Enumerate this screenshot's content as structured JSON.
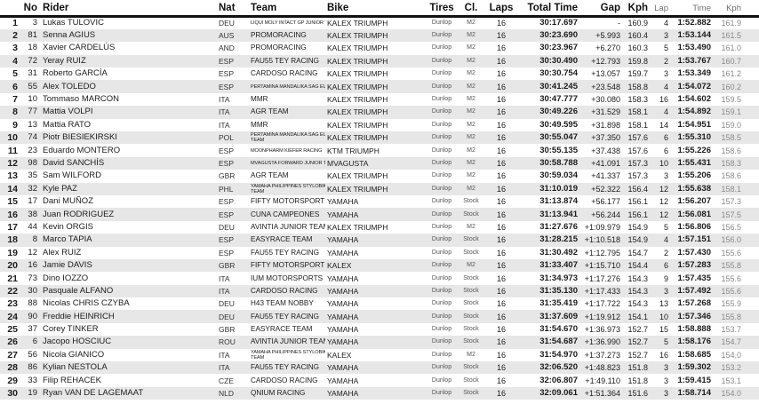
{
  "colors": {
    "rule": "#111111",
    "alt_row": "#e7e7e7",
    "body_text": "#1c1c1c",
    "muted_text": "#8a8a8a",
    "subheader_text": "#6e6e6e",
    "tire_class_text": "#555555"
  },
  "table": {
    "columns": [
      "No",
      "Rider",
      "Nat",
      "Team",
      "Bike",
      "Tires",
      "Cl.",
      "Laps",
      "Total Time",
      "Gap",
      "Kph",
      "Lap",
      "Time",
      "Kph"
    ],
    "rows": [
      {
        "pos": "1",
        "no": "3",
        "rider": "Lukas TULOVIC",
        "nat": "DEU",
        "team": "LIQUI MOLY INTACT GP JUNIOR TEAM",
        "team_small": true,
        "bike": "KALEX TRIUMPH",
        "tires": "Dunlop",
        "cl": "M2",
        "laps": "16",
        "total": "30:17.697",
        "gap": "-",
        "kph": "160.9",
        "blap": "4",
        "btime": "1:52.882",
        "bkph": "161.9"
      },
      {
        "pos": "2",
        "no": "81",
        "rider": "Senna AGIUS",
        "nat": "AUS",
        "team": "PROMORACING",
        "bike": "KALEX TRIUMPH",
        "tires": "Dunlop",
        "cl": "M2",
        "laps": "16",
        "total": "30:23.690",
        "gap": "+5.993",
        "kph": "160.4",
        "blap": "3",
        "btime": "1:53.144",
        "bkph": "161.5"
      },
      {
        "pos": "3",
        "no": "18",
        "rider": "Xavier CARDELÚS",
        "nat": "AND",
        "team": "PROMORACING",
        "bike": "KALEX TRIUMPH",
        "tires": "Dunlop",
        "cl": "M2",
        "laps": "16",
        "total": "30:23.967",
        "gap": "+6.270",
        "kph": "160.3",
        "blap": "5",
        "btime": "1:53.490",
        "bkph": "161.0"
      },
      {
        "pos": "4",
        "no": "72",
        "rider": "Yeray RUIZ",
        "nat": "ESP",
        "team": "FAU55 TEY RACING",
        "bike": "KALEX TRIUMPH",
        "tires": "Dunlop",
        "cl": "M2",
        "laps": "16",
        "total": "30:30.490",
        "gap": "+12.793",
        "kph": "159.8",
        "blap": "2",
        "btime": "1:53.767",
        "bkph": "160.7"
      },
      {
        "pos": "5",
        "no": "31",
        "rider": "Roberto GARCÍA",
        "nat": "ESP",
        "team": "CARDOSO RACING",
        "bike": "KALEX TRIUMPH",
        "tires": "Dunlop",
        "cl": "M2",
        "laps": "16",
        "total": "30:30.754",
        "gap": "+13.057",
        "kph": "159.7",
        "blap": "3",
        "btime": "1:53.349",
        "bkph": "161.2"
      },
      {
        "pos": "6",
        "no": "55",
        "rider": "Alex TOLEDO",
        "nat": "ESP",
        "team": "PERTAMINA MANDALIKA SAG EUVIC",
        "team_small": true,
        "bike": "KALEX TRIUMPH",
        "tires": "Dunlop",
        "cl": "M2",
        "laps": "16",
        "total": "30:41.245",
        "gap": "+23.548",
        "kph": "158.8",
        "blap": "4",
        "btime": "1:54.072",
        "bkph": "160.2"
      },
      {
        "pos": "7",
        "no": "10",
        "rider": "Tommaso MARCON",
        "nat": "ITA",
        "team": "MMR",
        "bike": "KALEX TRIUMPH",
        "tires": "Dunlop",
        "cl": "M2",
        "laps": "16",
        "total": "30:47.777",
        "gap": "+30.080",
        "kph": "158.3",
        "blap": "16",
        "btime": "1:54.602",
        "bkph": "159.5"
      },
      {
        "pos": "8",
        "no": "77",
        "rider": "Mattia VOLPI",
        "nat": "ITA",
        "team": "AGR TEAM",
        "bike": "KALEX TRIUMPH",
        "tires": "Dunlop",
        "cl": "M2",
        "laps": "16",
        "total": "30:49.226",
        "gap": "+31.529",
        "kph": "158.1",
        "blap": "4",
        "btime": "1:54.892",
        "bkph": "159.1"
      },
      {
        "pos": "9",
        "no": "13",
        "rider": "Mattia RATO",
        "nat": "ITA",
        "team": "MMR",
        "bike": "KALEX TRIUMPH",
        "tires": "Dunlop",
        "cl": "M2",
        "laps": "16",
        "total": "30:49.595",
        "gap": "+31.898",
        "kph": "158.1",
        "blap": "14",
        "btime": "1:54.951",
        "bkph": "159.0"
      },
      {
        "pos": "10",
        "no": "74",
        "rider": "Piotr BIESIEKIRSKI",
        "nat": "POL",
        "team": "PERTAMINA MANDALIKA SAG EUVIC RACING",
        "team2": "TEAM",
        "team_small": true,
        "bike": "KALEX TRIUMPH",
        "tires": "Dunlop",
        "cl": "M2",
        "laps": "16",
        "total": "30:55.047",
        "gap": "+37.350",
        "kph": "157.6",
        "blap": "6",
        "btime": "1:55.310",
        "bkph": "158.5"
      },
      {
        "pos": "11",
        "no": "23",
        "rider": "Eduardo MONTERO",
        "nat": "ESP",
        "team": "MOONPHARM KIEFER RACING",
        "team_small": true,
        "bike": "KTM TRIUMPH",
        "tires": "Dunlop",
        "cl": "M2",
        "laps": "16",
        "total": "30:55.135",
        "gap": "+37.438",
        "kph": "157.6",
        "blap": "6",
        "btime": "1:55.226",
        "bkph": "158.6"
      },
      {
        "pos": "12",
        "no": "98",
        "rider": "David SANCHÍS",
        "nat": "ESP",
        "team": "MVAGUSTA FORWARD JUNIOR TEAM",
        "team_small": true,
        "bike": "MVAGUSTA",
        "tires": "Dunlop",
        "cl": "M2",
        "laps": "16",
        "total": "30:58.788",
        "gap": "+41.091",
        "kph": "157.3",
        "blap": "10",
        "btime": "1:55.431",
        "bkph": "158.3"
      },
      {
        "pos": "13",
        "no": "35",
        "rider": "Sam WILFORD",
        "nat": "GBR",
        "team": "AGR TEAM",
        "bike": "KALEX TRIUMPH",
        "tires": "Dunlop",
        "cl": "M2",
        "laps": "16",
        "total": "30:59.034",
        "gap": "+41.337",
        "kph": "157.3",
        "blap": "3",
        "btime": "1:55.206",
        "bkph": "158.6"
      },
      {
        "pos": "14",
        "no": "32",
        "rider": "Kyle PAZ",
        "nat": "PHL",
        "team": "YAMAHA PHILIPPINES STYLOBIKE RACING",
        "team2": "TEAM",
        "team_small": true,
        "bike": "KALEX TRIUMPH",
        "tires": "Dunlop",
        "cl": "M2",
        "laps": "16",
        "total": "31:10.019",
        "gap": "+52.322",
        "kph": "156.4",
        "blap": "12",
        "btime": "1:55.638",
        "bkph": "158.1"
      },
      {
        "pos": "15",
        "no": "17",
        "rider": "Dani MUÑOZ",
        "nat": "ESP",
        "team": "FIFTY MOTORSPORT",
        "bike": "YAMAHA",
        "tires": "Dunlop",
        "cl": "Stock",
        "laps": "16",
        "total": "31:13.874",
        "gap": "+56.177",
        "kph": "156.1",
        "blap": "12",
        "btime": "1:56.207",
        "bkph": "157.3"
      },
      {
        "pos": "16",
        "no": "38",
        "rider": "Juan RODRIGUEZ",
        "nat": "ESP",
        "team": "CUNA CAMPEONES",
        "bike": "YAMAHA",
        "tires": "Dunlop",
        "cl": "Stock",
        "laps": "16",
        "total": "31:13.941",
        "gap": "+56.244",
        "kph": "156.1",
        "blap": "12",
        "btime": "1:56.081",
        "bkph": "157.5"
      },
      {
        "pos": "17",
        "no": "44",
        "rider": "Kevin ORGIS",
        "nat": "DEU",
        "team": "AVINTIA JUNIOR TEAM",
        "bike": "KALEX TRIUMPH",
        "tires": "Dunlop",
        "cl": "M2",
        "laps": "16",
        "total": "31:27.676",
        "gap": "+1:09.979",
        "kph": "154.9",
        "blap": "5",
        "btime": "1:56.806",
        "bkph": "156.5"
      },
      {
        "pos": "18",
        "no": "8",
        "rider": "Marco TAPIA",
        "nat": "ESP",
        "team": "EASYRACE TEAM",
        "bike": "YAMAHA",
        "tires": "Dunlop",
        "cl": "Stock",
        "laps": "16",
        "total": "31:28.215",
        "gap": "+1:10.518",
        "kph": "154.9",
        "blap": "4",
        "btime": "1:57.151",
        "bkph": "156.0"
      },
      {
        "pos": "19",
        "no": "12",
        "rider": "Alex RUIZ",
        "nat": "ESP",
        "team": "FAU55 TEY RACING",
        "bike": "YAMAHA",
        "tires": "Dunlop",
        "cl": "Stock",
        "laps": "16",
        "total": "31:30.492",
        "gap": "+1:12.795",
        "kph": "154.7",
        "blap": "2",
        "btime": "1:57.430",
        "bkph": "155.6"
      },
      {
        "pos": "20",
        "no": "16",
        "rider": "Jamie DAVIS",
        "nat": "GBR",
        "team": "FIFTY MOTORSPORT",
        "bike": "KALEX",
        "tires": "Dunlop",
        "cl": "M2",
        "laps": "16",
        "total": "31:33.407",
        "gap": "+1:15.710",
        "kph": "154.4",
        "blap": "6",
        "btime": "1:57.283",
        "bkph": "155.8"
      },
      {
        "pos": "21",
        "no": "73",
        "rider": "Dino IOZZO",
        "nat": "ITA",
        "team": "IUM MOTORSPORTS",
        "bike": "YAMAHA",
        "tires": "Dunlop",
        "cl": "Stock",
        "laps": "16",
        "total": "31:34.973",
        "gap": "+1:17.276",
        "kph": "154.3",
        "blap": "9",
        "btime": "1:57.435",
        "bkph": "155.6"
      },
      {
        "pos": "22",
        "no": "30",
        "rider": "Pasquale ALFANO",
        "nat": "ITA",
        "team": "CARDOSO RACING",
        "bike": "YAMAHA",
        "tires": "Dunlop",
        "cl": "Stock",
        "laps": "16",
        "total": "31:35.130",
        "gap": "+1:17.433",
        "kph": "154.3",
        "blap": "3",
        "btime": "1:57.492",
        "bkph": "155.6"
      },
      {
        "pos": "23",
        "no": "88",
        "rider": "Nicolas CHRIS CZYBA",
        "nat": "DEU",
        "team": "H43 TEAM NOBBY",
        "bike": "YAMAHA",
        "tires": "Dunlop",
        "cl": "Stock",
        "laps": "16",
        "total": "31:35.419",
        "gap": "+1:17.722",
        "kph": "154.3",
        "blap": "13",
        "btime": "1:57.268",
        "bkph": "155.9"
      },
      {
        "pos": "24",
        "no": "90",
        "rider": "Freddie HEINRICH",
        "nat": "DEU",
        "team": "FAU55 TEY RACING",
        "bike": "YAMAHA",
        "tires": "Dunlop",
        "cl": "Stock",
        "laps": "16",
        "total": "31:37.609",
        "gap": "+1:19.912",
        "kph": "154.1",
        "blap": "10",
        "btime": "1:57.346",
        "bkph": "155.8"
      },
      {
        "pos": "25",
        "no": "37",
        "rider": "Corey TINKER",
        "nat": "GBR",
        "team": "EASYRACE TEAM",
        "bike": "YAMAHA",
        "tires": "Dunlop",
        "cl": "Stock",
        "laps": "16",
        "total": "31:54.670",
        "gap": "+1:36.973",
        "kph": "152.7",
        "blap": "15",
        "btime": "1:58.888",
        "bkph": "153.7"
      },
      {
        "pos": "26",
        "no": "6",
        "rider": "Jacopo HOSCIUC",
        "nat": "ROU",
        "team": "AVINTIA JUNIOR TEAM",
        "bike": "YAMAHA",
        "tires": "Dunlop",
        "cl": "Stock",
        "laps": "16",
        "total": "31:54.687",
        "gap": "+1:36.990",
        "kph": "152.7",
        "blap": "5",
        "btime": "1:58.176",
        "bkph": "154.7"
      },
      {
        "pos": "27",
        "no": "56",
        "rider": "Nicola GIANICO",
        "nat": "ITA",
        "team": "YAMAHA PHILIPPINES STYLOBIKE RACING",
        "team2": "TEAM",
        "team_small": true,
        "bike": "KALEX",
        "tires": "Dunlop",
        "cl": "M2",
        "laps": "16",
        "total": "31:54.970",
        "gap": "+1:37.273",
        "kph": "152.7",
        "blap": "16",
        "btime": "1:58.685",
        "bkph": "154.0"
      },
      {
        "pos": "28",
        "no": "86",
        "rider": "Kylian NESTOLA",
        "nat": "ITA",
        "team": "FAU55 TEY RACING",
        "bike": "YAMAHA",
        "tires": "Dunlop",
        "cl": "Stock",
        "laps": "16",
        "total": "32:06.520",
        "gap": "+1:48.823",
        "kph": "151.8",
        "blap": "3",
        "btime": "1:59.302",
        "bkph": "153.2"
      },
      {
        "pos": "29",
        "no": "33",
        "rider": "Filip REHACEK",
        "nat": "CZE",
        "team": "CARDOSO RACING",
        "bike": "YAMAHA",
        "tires": "Dunlop",
        "cl": "Stock",
        "laps": "16",
        "total": "32:06.807",
        "gap": "+1:49.110",
        "kph": "151.8",
        "blap": "3",
        "btime": "1:59.415",
        "bkph": "153.1"
      },
      {
        "pos": "30",
        "no": "19",
        "rider": "Ryan VAN DE LAGEMAAT",
        "nat": "NLD",
        "team": "QNIUM RACING",
        "bike": "YAMAHA",
        "tires": "Dunlop",
        "cl": "Stock",
        "laps": "16",
        "total": "32:09.061",
        "gap": "+1:51.364",
        "kph": "151.6",
        "blap": "3",
        "btime": "1:58.714",
        "bkph": "154.0"
      }
    ]
  }
}
